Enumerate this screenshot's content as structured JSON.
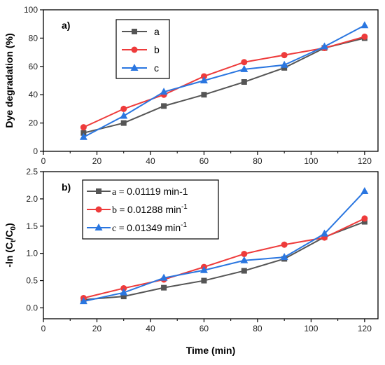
{
  "chart_data": [
    {
      "type": "line",
      "panel_label": "a)",
      "ylabel": "Dye degradation (%)",
      "xlabel": "",
      "xlim": [
        0,
        125
      ],
      "ylim": [
        0,
        100
      ],
      "xticks": [
        0,
        20,
        40,
        60,
        80,
        100,
        120
      ],
      "yticks": [
        0,
        20,
        40,
        60,
        80,
        100
      ],
      "x": [
        15,
        30,
        45,
        60,
        75,
        90,
        105,
        120
      ],
      "series": [
        {
          "name": "a",
          "marker": "square",
          "color": "#555555",
          "values": [
            13,
            20,
            32,
            40,
            49,
            59,
            73,
            80
          ]
        },
        {
          "name": "b",
          "marker": "circle",
          "color": "#ee3b3b",
          "values": [
            17,
            30,
            40,
            53,
            63,
            68,
            73,
            81
          ]
        },
        {
          "name": "c",
          "marker": "triangle",
          "color": "#2a76e0",
          "values": [
            10,
            25,
            42,
            50,
            58,
            61,
            74,
            89
          ]
        }
      ],
      "legend": "top-left"
    },
    {
      "type": "line",
      "panel_label": "b)",
      "ylabel": "-ln (Ct/C0)",
      "ylabel_parts": {
        "pre": "-ln (C",
        "sub1": "t",
        "mid": "/C",
        "sub2": "0",
        "post": ")"
      },
      "xlabel": "Time (min)",
      "xlim": [
        0,
        125
      ],
      "ylim": [
        -0.2,
        2.5
      ],
      "xticks": [
        0,
        20,
        40,
        60,
        80,
        100,
        120
      ],
      "yticks": [
        "0.0",
        "0.5",
        "1.0",
        "1.5",
        "2.0",
        "2.5"
      ],
      "x": [
        15,
        30,
        45,
        60,
        75,
        90,
        105,
        120
      ],
      "series": [
        {
          "name": "a",
          "marker": "square",
          "color": "#555555",
          "values": [
            0.15,
            0.21,
            0.37,
            0.5,
            0.68,
            0.9,
            1.3,
            1.58
          ]
        },
        {
          "name": "b",
          "marker": "circle",
          "color": "#ee3b3b",
          "values": [
            0.18,
            0.36,
            0.52,
            0.75,
            0.99,
            1.16,
            1.29,
            1.64
          ]
        },
        {
          "name": "c",
          "marker": "triangle",
          "color": "#2a76e0",
          "values": [
            0.12,
            0.28,
            0.55,
            0.69,
            0.87,
            0.93,
            1.36,
            2.14
          ]
        }
      ],
      "legend_entries": [
        {
          "prefix": "a = ",
          "value": "0.01119 min-1",
          "sup": ""
        },
        {
          "prefix": "b = ",
          "value": "0.01288 min",
          "sup": "-1"
        },
        {
          "prefix": "c = ",
          "value": "0.01349 min",
          "sup": "-1"
        }
      ],
      "legend": "top-left"
    }
  ]
}
